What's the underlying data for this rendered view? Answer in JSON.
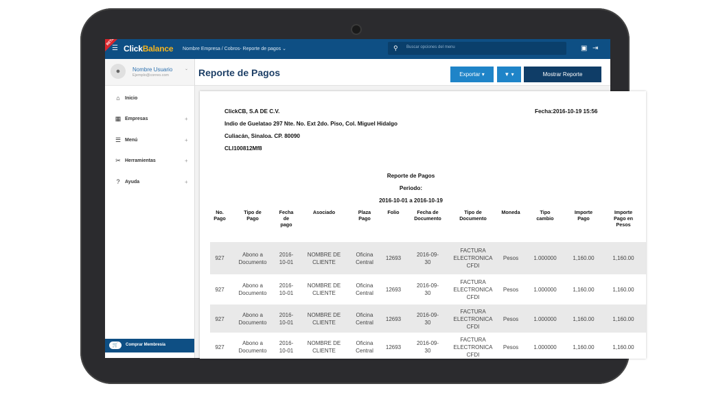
{
  "app": {
    "brand_click": "Click",
    "brand_balance": "Balance",
    "beta": "BETA",
    "breadcrumb": "Nombre Empresa / Cobros- Reporte de pagos ⌄",
    "search_placeholder": "Buscar opciones del menu"
  },
  "user": {
    "name": "Nombre Usuario",
    "email": "Ejemplo@correo.com"
  },
  "nav": [
    {
      "label": "Inicio",
      "icon": "home-icon",
      "glyph": "⌂",
      "plus": ""
    },
    {
      "label": "Empresas",
      "icon": "building-icon",
      "glyph": "▦",
      "plus": "+"
    },
    {
      "label": "Menú",
      "icon": "list-icon",
      "glyph": "☰",
      "plus": "+"
    },
    {
      "label": "Herramientas",
      "icon": "tools-icon",
      "glyph": "✂",
      "plus": "+"
    },
    {
      "label": "Ayuda",
      "icon": "help-icon",
      "glyph": "?",
      "plus": "+"
    }
  ],
  "membership": "Comprar Membresía",
  "page": {
    "title": "Reporte de Pagos",
    "export_label": "Exportar ▾",
    "filter_label": "▼ ▾",
    "show_label": "Mostrar Reporte"
  },
  "report": {
    "company": "ClickCB, S.A DE C.V.",
    "address1": "Indio de Guelatao 297 Nte. No. Ext 2do. Piso, Col. Miguel Hidalgo",
    "address2": "Culiacán, Sinaloa. CP. 80090",
    "rfc": "CLI100812Mf8",
    "date": "Fecha:2016-10-19 15:56",
    "title": "Reporte de Pagos",
    "period_label": "Periodo:",
    "period": "2016-10-01 a 2016-10-19",
    "columns": [
      "No.\nPago",
      "Tipo de\nPago",
      "Fecha\nde\npago",
      "Asociado",
      "Plaza\nPago",
      "Folio",
      "Fecha de\nDocumento",
      "Tipo de\nDocumento",
      "Moneda",
      "Tipo\ncambio",
      "Importe\nPago",
      "Importe\nPago en\nPesos"
    ],
    "rows": [
      [
        "927",
        "Abono a\nDocumento",
        "2016-\n10-01",
        "NOMBRE DE\nCLIENTE",
        "Oficina\nCentral",
        "12693",
        "2016-09-\n30",
        "FACTURA\nELECTRONICA\nCFDI",
        "Pesos",
        "1.000000",
        "1,160.00",
        "1,160.00"
      ],
      [
        "927",
        "Abono a\nDocumento",
        "2016-\n10-01",
        "NOMBRE DE\nCLIENTE",
        "Oficina\nCentral",
        "12693",
        "2016-09-\n30",
        "FACTURA\nELECTRONICA\nCFDI",
        "Pesos",
        "1.000000",
        "1,160.00",
        "1,160.00"
      ],
      [
        "927",
        "Abono a\nDocumento",
        "2016-\n10-01",
        "NOMBRE DE\nCLIENTE",
        "Oficina\nCentral",
        "12693",
        "2016-09-\n30",
        "FACTURA\nELECTRONICA\nCFDI",
        "Pesos",
        "1.000000",
        "1,160.00",
        "1,160.00"
      ],
      [
        "927",
        "Abono a\nDocumento",
        "2016-\n10-01",
        "NOMBRE DE\nCLIENTE",
        "Oficina\nCentral",
        "12693",
        "2016-09-\n30",
        "FACTURA\nELECTRONICA\nCFDI",
        "Pesos",
        "1.000000",
        "1,160.00",
        "1,160.00"
      ]
    ]
  },
  "colors": {
    "topbar": "#0e4f84",
    "accent": "#1f84c8",
    "dark_button": "#0f3d67",
    "row_alt": "#e9e9e9"
  }
}
